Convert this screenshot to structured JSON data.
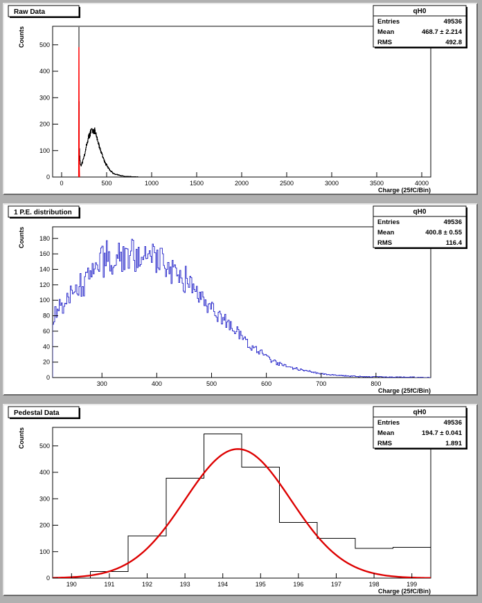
{
  "panels": [
    {
      "title": "Raw Data",
      "stats": {
        "name": "qH0",
        "rows": [
          {
            "label": "Entries",
            "value": "49536"
          },
          {
            "label": "Mean",
            "value": "468.7 ±  2.214"
          },
          {
            "label": "RMS",
            "value": "492.8"
          }
        ]
      }
    },
    {
      "title": "1 P.E. distribution",
      "stats": {
        "name": "qH0",
        "rows": [
          {
            "label": "Entries",
            "value": "49536"
          },
          {
            "label": "Mean",
            "value": "400.8 ±  0.55"
          },
          {
            "label": "RMS",
            "value": "116.4"
          }
        ]
      }
    },
    {
      "title": "Pedestal Data",
      "stats": {
        "name": "qH0",
        "rows": [
          {
            "label": "Entries",
            "value": "49536"
          },
          {
            "label": "Mean",
            "value": "194.7 ±  0.041"
          },
          {
            "label": "RMS",
            "value": "1.891"
          }
        ]
      }
    }
  ],
  "colors": {
    "background": "#b0b0b0",
    "raw_histogram": "#000000",
    "pedestal_overlay": "#ff0000",
    "pe_histogram": "#3333cc",
    "pedestal_histogram": "#000000",
    "gaussian_fit": "#dd0000"
  },
  "chart_data": [
    {
      "type": "histogram",
      "title": "Raw Data",
      "xlabel": "Charge (25fC/Bin)",
      "ylabel": "Counts",
      "xlim": [
        -100,
        4100
      ],
      "ylim": [
        0,
        570
      ],
      "xticks": [
        0,
        500,
        1000,
        1500,
        2000,
        2500,
        3000,
        3500,
        4000
      ],
      "yticks": [
        0,
        100,
        200,
        300,
        400,
        500
      ],
      "grid": false,
      "series": [
        {
          "kind": "histogram",
          "color": "#000000",
          "points": [
            [
              190,
              0
            ],
            [
              193,
              545
            ],
            [
              195,
              310
            ],
            [
              197,
              120
            ],
            [
              200,
              90
            ],
            [
              205,
              60
            ],
            [
              215,
              40
            ],
            [
              230,
              55
            ],
            [
              250,
              80
            ],
            [
              270,
              110
            ],
            [
              290,
              140
            ],
            [
              310,
              160
            ],
            [
              330,
              175
            ],
            [
              350,
              178
            ],
            [
              370,
              170
            ],
            [
              390,
              150
            ],
            [
              410,
              125
            ],
            [
              430,
              105
            ],
            [
              450,
              85
            ],
            [
              470,
              65
            ],
            [
              490,
              50
            ],
            [
              510,
              38
            ],
            [
              540,
              25
            ],
            [
              570,
              15
            ],
            [
              600,
              10
            ],
            [
              650,
              6
            ],
            [
              700,
              3
            ],
            [
              750,
              2
            ],
            [
              800,
              1
            ],
            [
              900,
              0
            ]
          ]
        },
        {
          "kind": "bars",
          "color": "#ff0000",
          "points": [
            [
              188,
              0
            ],
            [
              190,
              490
            ],
            [
              194,
              490
            ],
            [
              196,
              100
            ],
            [
              198,
              30
            ],
            [
              200,
              0
            ]
          ]
        }
      ]
    },
    {
      "type": "histogram",
      "title": "1 P.E. distribution",
      "xlabel": "Charge (25fC/Bin)",
      "ylabel": "Counts",
      "xlim": [
        210,
        900
      ],
      "ylim": [
        0,
        195
      ],
      "xticks": [
        300,
        400,
        500,
        600,
        700,
        800
      ],
      "yticks": [
        0,
        20,
        40,
        60,
        80,
        100,
        120,
        140,
        160,
        180
      ],
      "grid": false,
      "series": [
        {
          "kind": "histogram",
          "color": "#3333cc",
          "points": [
            [
              210,
              80
            ],
            [
              230,
              95
            ],
            [
              250,
              110
            ],
            [
              270,
              125
            ],
            [
              290,
              145
            ],
            [
              310,
              155
            ],
            [
              330,
              158
            ],
            [
              350,
              158
            ],
            [
              370,
              157
            ],
            [
              390,
              155
            ],
            [
              410,
              150
            ],
            [
              430,
              140
            ],
            [
              450,
              128
            ],
            [
              470,
              115
            ],
            [
              490,
              100
            ],
            [
              510,
              85
            ],
            [
              530,
              70
            ],
            [
              550,
              55
            ],
            [
              570,
              42
            ],
            [
              590,
              32
            ],
            [
              610,
              24
            ],
            [
              630,
              17
            ],
            [
              650,
              12
            ],
            [
              670,
              9
            ],
            [
              690,
              6
            ],
            [
              710,
              4
            ],
            [
              750,
              2
            ],
            [
              800,
              1
            ],
            [
              900,
              0
            ]
          ]
        }
      ]
    },
    {
      "type": "histogram",
      "title": "Pedestal Data",
      "xlabel": "Charge (25fC/Bin)",
      "ylabel": "Counts",
      "xlim": [
        189.5,
        199.5
      ],
      "ylim": [
        0,
        570
      ],
      "xticks": [
        190,
        191,
        192,
        193,
        194,
        195,
        196,
        197,
        198,
        199
      ],
      "yticks": [
        0,
        100,
        200,
        300,
        400,
        500
      ],
      "grid": false,
      "series": [
        {
          "kind": "step",
          "color": "#000000",
          "bin_edges": [
            189.5,
            190.5,
            191.5,
            192.5,
            193.5,
            194.5,
            195.5,
            196.5,
            197.5,
            198.5,
            199.5
          ],
          "values": [
            0,
            25,
            160,
            378,
            545,
            420,
            210,
            150,
            113,
            117
          ]
        },
        {
          "kind": "fit",
          "color": "#dd0000",
          "function": "gaussian",
          "amplitude": 488,
          "mean": 194.4,
          "sigma": 1.4
        }
      ]
    }
  ]
}
